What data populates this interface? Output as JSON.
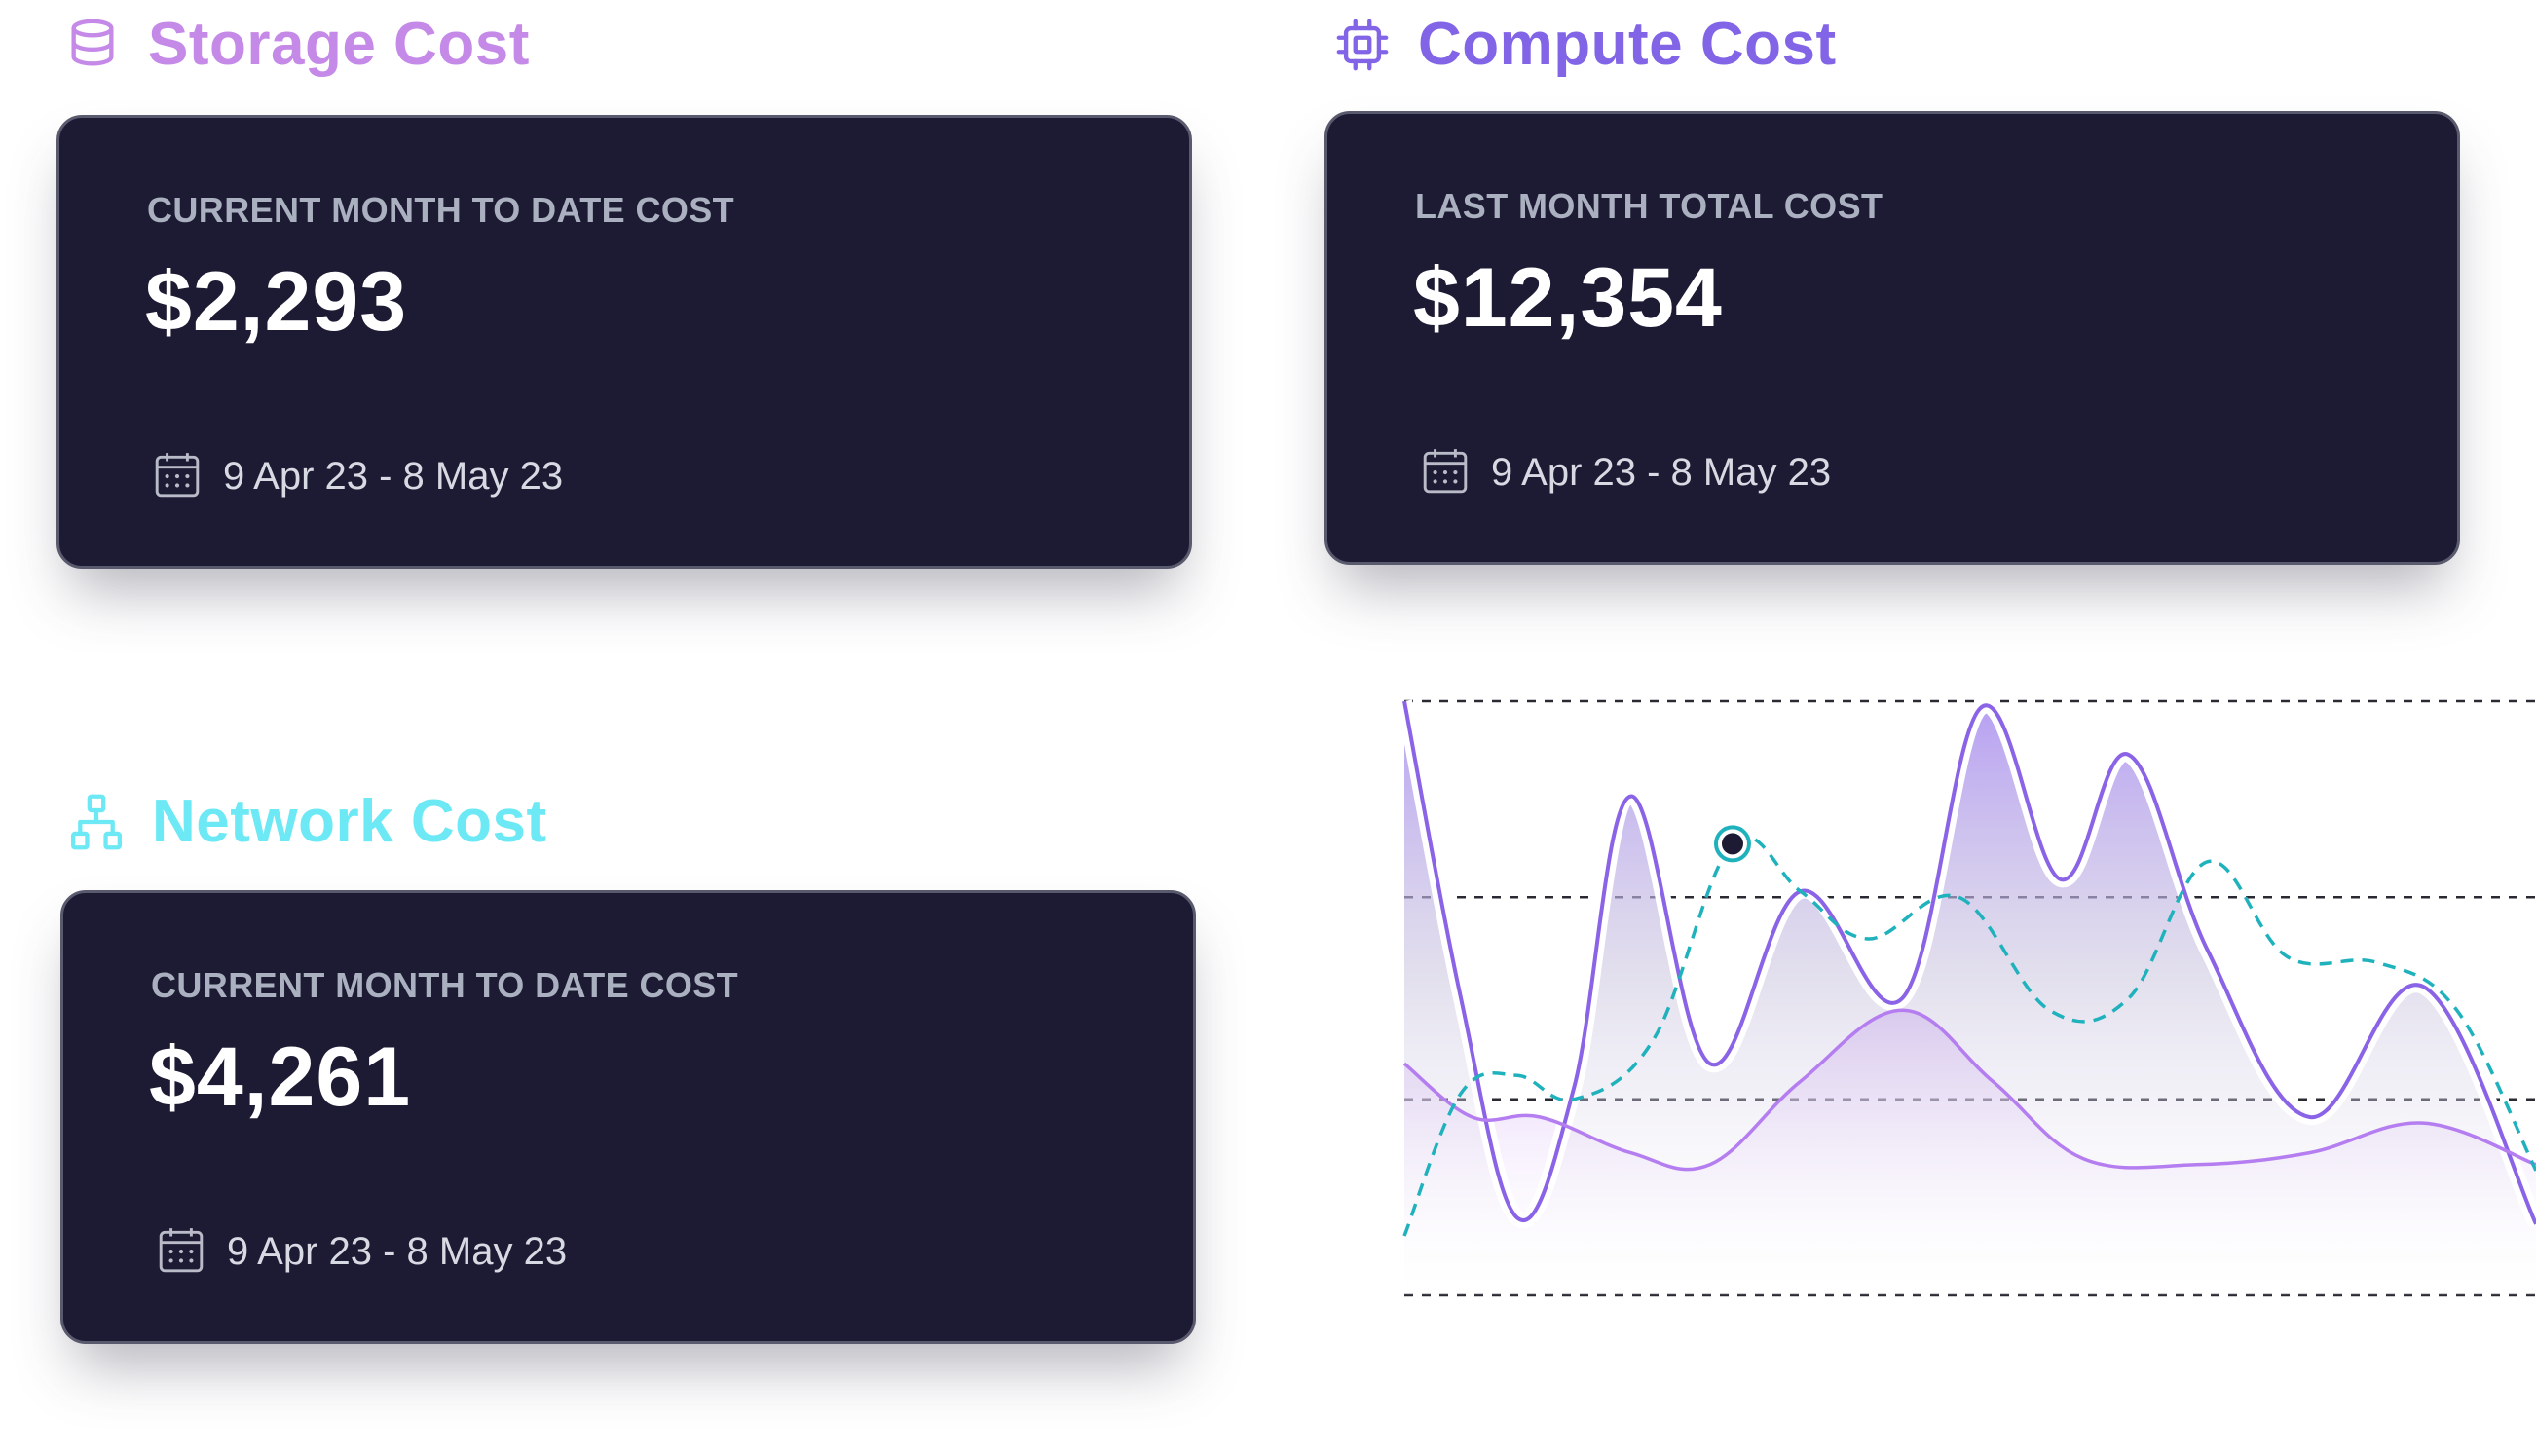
{
  "storage": {
    "title": "Storage Cost",
    "icon": "database-icon",
    "title_color": "#c58ae8",
    "card": {
      "label": "CURRENT MONTH TO DATE COST",
      "value": "$2,293",
      "date_range": "9 Apr 23 - 8 May 23"
    }
  },
  "compute": {
    "title": "Compute Cost",
    "icon": "cpu-chip-icon",
    "title_color": "#8265e6",
    "card": {
      "label": "LAST MONTH TOTAL COST",
      "value": "$12,354",
      "date_range": "9 Apr 23 - 8 May 23"
    }
  },
  "network": {
    "title": "Network Cost",
    "icon": "network-hierarchy-icon",
    "title_color": "#6de9f5",
    "card": {
      "label": "CURRENT MONTH TO DATE COST",
      "value": "$4,261",
      "date_range": "9 Apr 23 - 8 May 23"
    }
  },
  "colors": {
    "card_bg": "#1d1b34",
    "card_label": "#aab0bf",
    "card_value": "#ffffff",
    "series_purple": "#8a63e6",
    "series_lilac": "#b57ef0",
    "series_teal": "#1fb2bd"
  },
  "chart_data": {
    "type": "line",
    "ylim": [
      0,
      1
    ],
    "grid": "dashed horizontal lines at 0, 0.33, 0.67, 1",
    "series": [
      {
        "style": "solid line with filled area",
        "color": "#8a63e6",
        "x": [
          0,
          0.05,
          0.1,
          0.15,
          0.2,
          0.27,
          0.35,
          0.44,
          0.51,
          0.58,
          0.64,
          0.71,
          0.8,
          0.9,
          1.0
        ],
        "values": [
          1.0,
          0.5,
          0.13,
          0.35,
          0.84,
          0.39,
          0.68,
          0.5,
          0.99,
          0.7,
          0.91,
          0.58,
          0.3,
          0.52,
          0.12
        ]
      },
      {
        "style": "solid thin line with light fill",
        "color": "#b57ef0",
        "x": [
          0,
          0.06,
          0.12,
          0.2,
          0.27,
          0.35,
          0.44,
          0.52,
          0.6,
          0.7,
          0.8,
          0.9,
          1.0
        ],
        "values": [
          0.39,
          0.3,
          0.3,
          0.24,
          0.22,
          0.36,
          0.48,
          0.36,
          0.23,
          0.22,
          0.24,
          0.29,
          0.22
        ]
      },
      {
        "style": "dashed line",
        "color": "#1fb2bd",
        "x": [
          0,
          0.05,
          0.1,
          0.15,
          0.22,
          0.29,
          0.35,
          0.41,
          0.49,
          0.57,
          0.64,
          0.71,
          0.78,
          0.86,
          0.93,
          1.0
        ],
        "values": [
          0.1,
          0.34,
          0.37,
          0.33,
          0.43,
          0.76,
          0.68,
          0.6,
          0.67,
          0.48,
          0.5,
          0.73,
          0.57,
          0.56,
          0.48,
          0.21
        ]
      }
    ],
    "highlight_point": {
      "series": 2,
      "x": 0.29,
      "y": 0.76
    }
  }
}
